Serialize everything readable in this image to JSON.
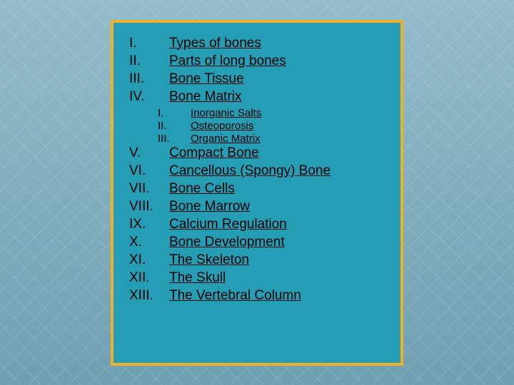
{
  "outline": {
    "mainItems": [
      {
        "num": "I.",
        "text": "Types of bones"
      },
      {
        "num": "II.",
        "text": "Parts of long bones"
      },
      {
        "num": "III.",
        "text": "Bone Tissue"
      },
      {
        "num": "IV.",
        "text": "Bone Matrix"
      }
    ],
    "subItems": [
      {
        "num": "I.",
        "text": "Inorganic Salts"
      },
      {
        "num": "II.",
        "text": "Osteoporosis"
      },
      {
        "num": "III.",
        "text": "Organic Matrix"
      }
    ],
    "mainItems2": [
      {
        "num": "V.",
        "text": "Compact Bone"
      },
      {
        "num": "VI.",
        "text": "Cancellous (Spongy) Bone"
      },
      {
        "num": "VII.",
        "text": "Bone Cells"
      },
      {
        "num": "VIII.",
        "text": "Bone Marrow"
      },
      {
        "num": "IX.",
        "text": "Calcium Regulation"
      },
      {
        "num": "X.",
        "text": "Bone Development"
      },
      {
        "num": "XI.",
        "text": "The Skeleton"
      },
      {
        "num": "XII.",
        "text": "The Skull"
      },
      {
        "num": "XIII.",
        "text": "The Vertebral Column"
      }
    ]
  },
  "style": {
    "panelBg": "#249db5",
    "borderColor": "#f0b128",
    "borderWidth": 4,
    "mainFontSize": 19,
    "subFontSize": 15,
    "bodyBg": "#7ba8b8"
  }
}
